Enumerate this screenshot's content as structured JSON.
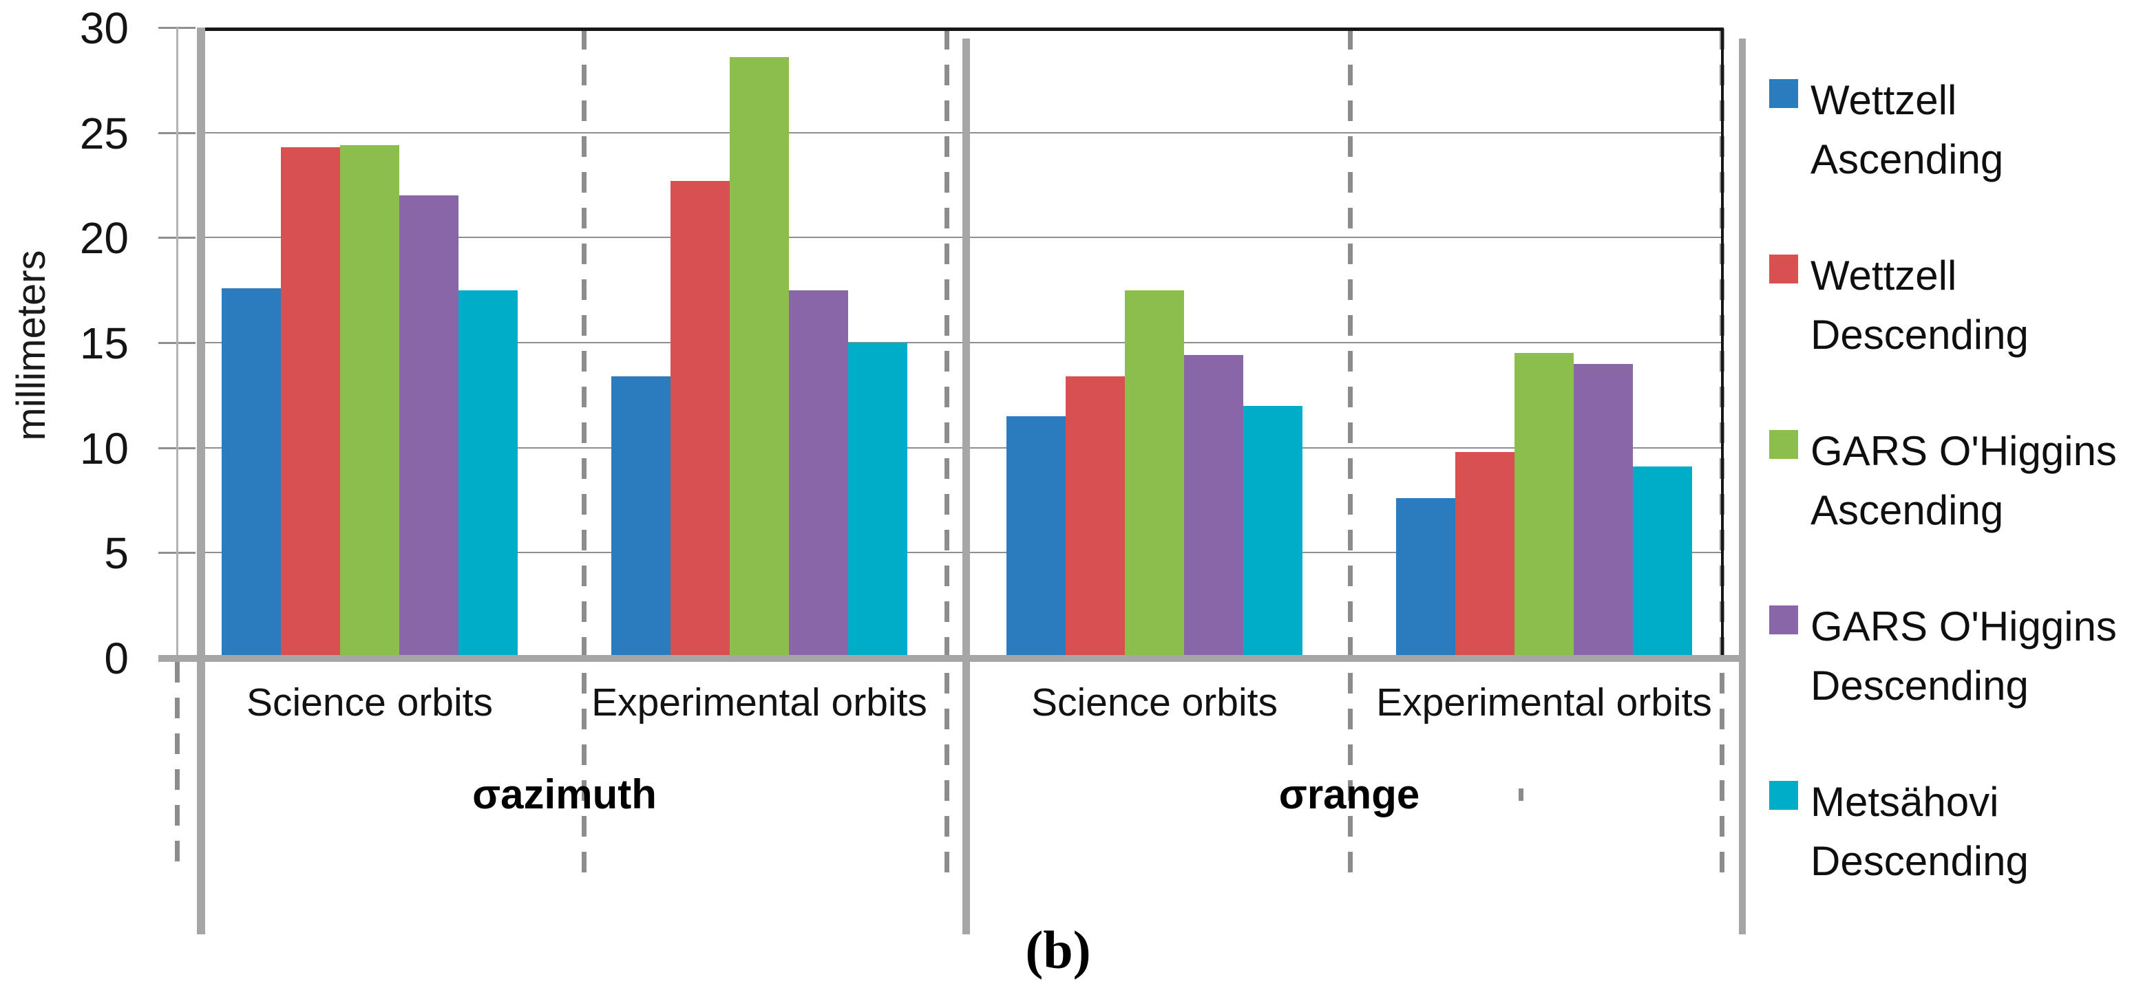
{
  "chart_data": {
    "type": "bar",
    "title": "",
    "ylabel": "millimeters",
    "xlabel": "",
    "ylim": [
      0,
      30
    ],
    "yticks": [
      0,
      5,
      10,
      15,
      20,
      25,
      30
    ],
    "grid": true,
    "legend_position": "right",
    "sections": [
      {
        "label": "σazimuth",
        "groups": [
          "Science orbits",
          "Experimental orbits"
        ]
      },
      {
        "label": "σrange",
        "groups": [
          "Science orbits",
          "Experimental orbits"
        ]
      }
    ],
    "categories": [
      "σazimuth / Science orbits",
      "σazimuth / Experimental orbits",
      "σrange / Science orbits",
      "σrange / Experimental orbits"
    ],
    "series": [
      {
        "name": "Wettzell Ascending",
        "color": "#2b7cbf",
        "values": [
          17.6,
          13.4,
          11.5,
          7.6
        ]
      },
      {
        "name": "Wettzell Descending",
        "color": "#d85150",
        "values": [
          24.3,
          22.7,
          13.4,
          9.8
        ]
      },
      {
        "name": "GARS O'Higgins Ascending",
        "color": "#8cbe4d",
        "values": [
          24.4,
          28.6,
          17.5,
          14.5
        ]
      },
      {
        "name": "GARS O'Higgins Descending",
        "color": "#8966a8",
        "values": [
          22.0,
          17.5,
          14.4,
          14.0
        ]
      },
      {
        "name": "Metsähovi Descending",
        "color": "#00adc8",
        "values": [
          17.5,
          15.0,
          12.0,
          9.1
        ]
      }
    ],
    "legend_entries": [
      {
        "line1": "Wettzell",
        "line2": "Ascending"
      },
      {
        "line1": "Wettzell",
        "line2": "Descending"
      },
      {
        "line1": "GARS O'Higgins",
        "line2": "Ascending"
      },
      {
        "line1": "GARS O'Higgins",
        "line2": "Descending"
      },
      {
        "line1": "Metsähovi",
        "line2": "Descending"
      }
    ],
    "caption": "(b)"
  }
}
